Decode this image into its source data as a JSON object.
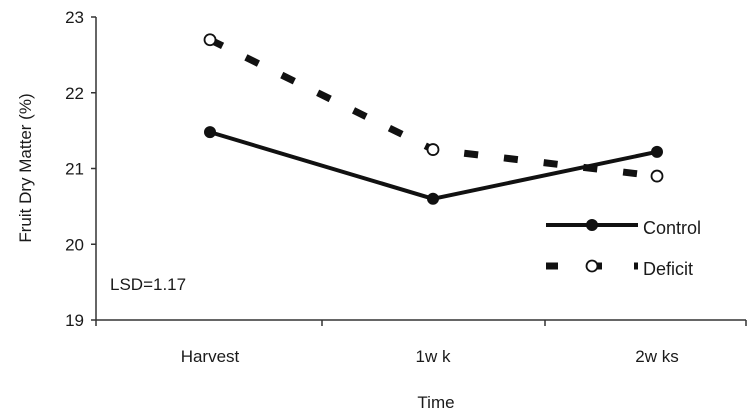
{
  "chart_data": {
    "type": "line",
    "title": "",
    "xlabel": "Time",
    "ylabel": "Fruit Dry Matter (%)",
    "categories": [
      "Harvest",
      "1w k",
      "2w ks"
    ],
    "ylim": [
      19,
      23
    ],
    "yticks": [
      "19",
      "20",
      "21",
      "22",
      "23"
    ],
    "series": [
      {
        "name": "Control",
        "values": [
          21.48,
          20.6,
          21.22
        ],
        "line": "solid",
        "marker": "filled-circle",
        "color": "#111111"
      },
      {
        "name": "Deficit",
        "values": [
          22.7,
          21.25,
          20.9
        ],
        "line": "dashed",
        "marker": "open-circle",
        "color": "#111111"
      }
    ],
    "annotation": "LSD=1.17",
    "legend_position": "right",
    "grid": false
  }
}
